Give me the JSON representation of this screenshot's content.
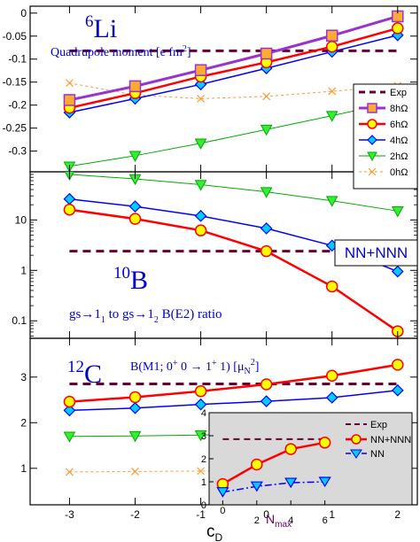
{
  "chart_data": {
    "type": "line",
    "x": [
      -3,
      -2,
      -1,
      0,
      1,
      2
    ],
    "xlabel": "c",
    "xlabel_sub": "D",
    "xlim": [
      -3.6,
      2.3
    ],
    "xticks": [
      "-3",
      "-2",
      "-1",
      "0",
      "1",
      "2"
    ],
    "colors": {
      "exp": "#660033",
      "8hw": "#9933cc",
      "6hw": "#ff0000",
      "4hw": "#0000ff",
      "2hw": "#00aa00",
      "0hw": "#ff9933",
      "text": "#0000cc",
      "inset_bg": "#d9d9d9"
    },
    "panels": [
      {
        "id": "li6",
        "label_sup": "6",
        "label": "Li",
        "subtitle": "Quadrupole moment [e fm",
        "subtitle_sup": "2",
        "subtitle_end": "]",
        "scale": "linear",
        "ylim": [
          -0.345,
          0.015
        ],
        "yticks": [
          "0",
          "-0.05",
          "-0.1",
          "-0.15",
          "-0.2",
          "-0.25",
          "-0.3"
        ],
        "exp": -0.082,
        "legend": [
          {
            "key": "exp",
            "label": "Exp"
          },
          {
            "key": "8hw",
            "label": "8hΩ"
          },
          {
            "key": "6hw",
            "label": "6hΩ"
          },
          {
            "key": "4hw",
            "label": "4hΩ"
          },
          {
            "key": "2hw",
            "label": "2hΩ"
          },
          {
            "key": "0hw",
            "label": "0hΩ"
          }
        ],
        "series": [
          {
            "key": "8hw",
            "values": [
              -0.189,
              -0.159,
              -0.124,
              -0.088,
              -0.049,
              -0.007
            ]
          },
          {
            "key": "6hw",
            "values": [
              -0.206,
              -0.174,
              -0.138,
              -0.107,
              -0.073,
              -0.033
            ]
          },
          {
            "key": "4hw",
            "values": [
              -0.216,
              -0.186,
              -0.155,
              -0.12,
              -0.084,
              -0.048
            ]
          },
          {
            "key": "2hw",
            "values": [
              -0.333,
              -0.31,
              -0.283,
              -0.253,
              -0.223,
              -0.192
            ]
          },
          {
            "key": "0hw",
            "values": [
              -0.152,
              -0.178,
              -0.186,
              -0.181,
              -0.17,
              -0.158
            ]
          }
        ]
      },
      {
        "id": "b10",
        "label_sup": "10",
        "label": "B",
        "subtitle": "gs→1",
        "subtitle_sub1": "1",
        "subtitle_mid": " to gs→1",
        "subtitle_sub2": "2",
        "subtitle_end": " B(E2) ratio",
        "tag": "NN+NNN",
        "scale": "log",
        "ylim": [
          0.045,
          90
        ],
        "yticks": [
          {
            "v": 0.1,
            "t": "0.1"
          },
          {
            "v": 1,
            "t": "1"
          },
          {
            "v": 10,
            "t": "10"
          }
        ],
        "exp": 2.4,
        "series": [
          {
            "key": "6hw",
            "values": [
              16,
              10.5,
              6.2,
              2.4,
              0.48,
              0.062
            ]
          },
          {
            "key": "4hw",
            "values": [
              26,
              18.5,
              12,
              6.8,
              3.1,
              0.95
            ]
          },
          {
            "key": "2hw",
            "values": [
              80,
              65,
              50,
              36,
              24,
              15
            ]
          }
        ]
      },
      {
        "id": "c12",
        "label_sup": "12",
        "label": "C",
        "subtitle": "B(M1; 0",
        "subtitle_sup1": "+",
        "subtitle_mid": " 0 → 1",
        "subtitle_sup2": "+",
        "subtitle_mid2": " 1) [μ",
        "subtitle_sub": "N",
        "subtitle_sup3": "2",
        "subtitle_end": "]",
        "scale": "linear",
        "ylim": [
          0.2,
          3.85
        ],
        "yticks": [
          "1",
          "2",
          "3"
        ],
        "exp": 2.85,
        "series": [
          {
            "key": "6hw",
            "values": [
              2.46,
              2.56,
              2.69,
              2.84,
              3.03,
              3.27
            ]
          },
          {
            "key": "4hw",
            "values": [
              2.27,
              2.32,
              2.4,
              2.47,
              2.55,
              2.71
            ]
          },
          {
            "key": "2hw",
            "values": [
              1.7,
              1.71,
              1.73,
              1.76,
              1.8,
              1.86
            ]
          },
          {
            "key": "0hw",
            "values": [
              0.92,
              0.93,
              0.94,
              0.95,
              0.96,
              0.97
            ]
          }
        ]
      }
    ],
    "inset": {
      "xlabel": "N",
      "xlabel_sub": "max",
      "x": [
        0,
        2,
        4,
        6
      ],
      "xticks": [
        "0",
        "2",
        "4",
        "6"
      ],
      "yticks": [
        "0",
        "1",
        "2",
        "3",
        "4"
      ],
      "xlim": [
        -0.8,
        6.8
      ],
      "ylim": [
        0,
        4
      ],
      "exp": 2.85,
      "legend": [
        {
          "key": "exp",
          "label": "Exp"
        },
        {
          "key": "nnn",
          "label": "NN+NNN"
        },
        {
          "key": "nn",
          "label": "NN"
        }
      ],
      "series": [
        {
          "key": "nnn",
          "values": [
            0.9,
            1.75,
            2.42,
            2.7
          ]
        },
        {
          "key": "nn",
          "values": [
            0.55,
            0.8,
            0.96,
            1.0
          ]
        }
      ]
    }
  }
}
